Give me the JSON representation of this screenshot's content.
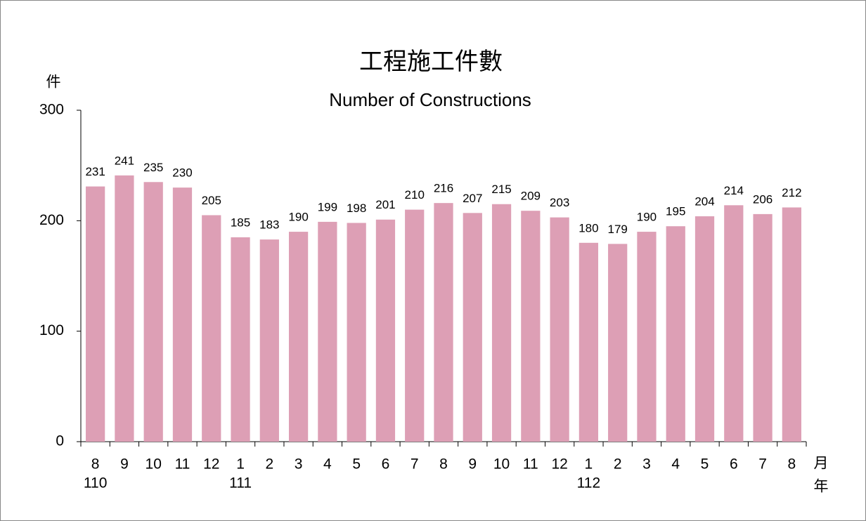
{
  "chart_data": {
    "type": "bar",
    "title": "工程施工件數",
    "subtitle": "Number of Constructions",
    "y_axis_label": "件",
    "x_axis_label_month": "月",
    "x_axis_label_year": "年",
    "categories": [
      "8",
      "9",
      "10",
      "11",
      "12",
      "1",
      "2",
      "3",
      "4",
      "5",
      "6",
      "7",
      "8",
      "9",
      "10",
      "11",
      "12",
      "1",
      "2",
      "3",
      "4",
      "5",
      "6",
      "7",
      "8"
    ],
    "year_labels": [
      "110",
      null,
      null,
      null,
      null,
      "111",
      null,
      null,
      null,
      null,
      null,
      null,
      null,
      null,
      null,
      null,
      null,
      "112",
      null,
      null,
      null,
      null,
      null,
      null,
      null
    ],
    "values": [
      231,
      241,
      235,
      230,
      205,
      185,
      183,
      190,
      199,
      198,
      201,
      210,
      216,
      207,
      215,
      209,
      203,
      180,
      179,
      190,
      195,
      204,
      214,
      206,
      212
    ],
    "color": "#dd9fb5",
    "ylim": [
      0,
      300
    ],
    "yticks": [
      0,
      100,
      200,
      300
    ],
    "grid": false,
    "data_labels": true
  }
}
